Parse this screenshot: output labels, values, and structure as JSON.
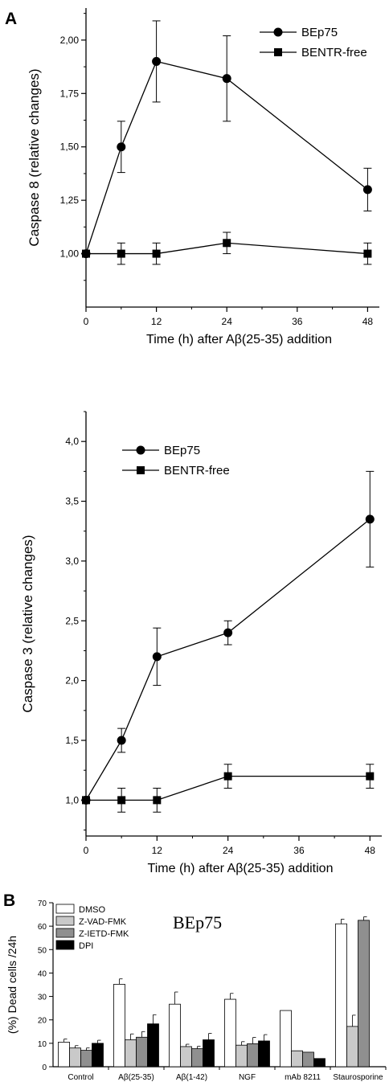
{
  "panel_labels": {
    "a": "A",
    "b": "B"
  },
  "chart_data": [
    {
      "type": "line",
      "panel": "A",
      "ylabel": "Caspase 8 (relative changes)",
      "xlabel": "Time (h) after Aβ(25-35) addition",
      "x": [
        0,
        6,
        12,
        24,
        48
      ],
      "xlim": [
        0,
        50
      ],
      "ylim": [
        0.75,
        2.15
      ],
      "xticks": [
        0,
        12,
        24,
        36,
        48
      ],
      "xtick_labels": [
        "0",
        "12",
        "24",
        "36",
        "48"
      ],
      "yticks": [
        1.0,
        1.25,
        1.5,
        1.75,
        2.0
      ],
      "ytick_labels": [
        "1,00",
        "1,25",
        "1,50",
        "1,75",
        "2,00"
      ],
      "grid": false,
      "legend_position": "top-right",
      "series": [
        {
          "name": "BEp75",
          "marker": "circle",
          "values": [
            1.0,
            1.5,
            1.9,
            1.82,
            1.3
          ],
          "errors": [
            0,
            0.12,
            0.19,
            0.2,
            0.1
          ]
        },
        {
          "name": "BENTR-free",
          "marker": "square",
          "values": [
            1.0,
            1.0,
            1.0,
            1.05,
            1.0
          ],
          "errors": [
            0,
            0.05,
            0.05,
            0.05,
            0.05
          ]
        }
      ]
    },
    {
      "type": "line",
      "panel": "A",
      "ylabel": "Caspase 3 (relative changes)",
      "xlabel": "Time (h) after Aβ(25-35) addition",
      "x": [
        0,
        6,
        12,
        24,
        48
      ],
      "xlim": [
        0,
        50
      ],
      "ylim": [
        0.7,
        4.25
      ],
      "xticks": [
        0,
        12,
        24,
        36,
        48
      ],
      "xtick_labels": [
        "0",
        "12",
        "24",
        "36",
        "48"
      ],
      "yticks": [
        1.0,
        1.5,
        2.0,
        2.5,
        3.0,
        3.5,
        4.0
      ],
      "ytick_labels": [
        "1,0",
        "1,5",
        "2,0",
        "2,5",
        "3,0",
        "3,5",
        "4,0"
      ],
      "grid": false,
      "legend_position": "top-left",
      "series": [
        {
          "name": "BEp75",
          "marker": "circle",
          "values": [
            1.0,
            1.5,
            2.2,
            2.4,
            3.35
          ],
          "errors": [
            0,
            0.1,
            0.24,
            0.1,
            0.4
          ]
        },
        {
          "name": "BENTR-free",
          "marker": "square",
          "values": [
            1.0,
            1.0,
            1.0,
            1.2,
            1.2
          ],
          "errors": [
            0,
            0.1,
            0.1,
            0.1,
            0.1
          ]
        }
      ]
    },
    {
      "type": "bar",
      "panel": "B",
      "title": "BEp75",
      "ylabel": "(%) Dead cells /24h",
      "categories": [
        "Control",
        "Aβ(25-35)",
        "Aβ(1-42)",
        "NGF",
        "mAb 8211",
        "Staurosporine"
      ],
      "ylim": [
        0,
        70
      ],
      "yticks": [
        0,
        10,
        20,
        30,
        40,
        50,
        60,
        70
      ],
      "grid": false,
      "legend_position": "top-left",
      "series": [
        {
          "name": "DMSO",
          "color": "#ffffff",
          "values": [
            10.5,
            35.2,
            26.7,
            28.8,
            24.0,
            61.0
          ],
          "errors": [
            1.3,
            2.3,
            5.2,
            2.5,
            0,
            2.0
          ]
        },
        {
          "name": "Z-VAD-FMK",
          "color": "#c9c9c9",
          "values": [
            8.0,
            11.5,
            8.6,
            9.2,
            6.8,
            17.2
          ],
          "errors": [
            1.0,
            2.5,
            1.0,
            1.5,
            0,
            4.8
          ]
        },
        {
          "name": "Z-IETD-FMK",
          "color": "#8f8f8f",
          "values": [
            7.0,
            12.6,
            7.7,
            9.8,
            6.2,
            62.5
          ],
          "errors": [
            1.0,
            2.4,
            1.0,
            2.7,
            0,
            1.5
          ]
        },
        {
          "name": "DPI",
          "color": "#000000",
          "values": [
            10.0,
            18.3,
            11.5,
            11.0,
            3.5,
            null
          ],
          "errors": [
            1.3,
            3.9,
            2.7,
            2.7,
            0,
            0
          ]
        }
      ]
    }
  ]
}
